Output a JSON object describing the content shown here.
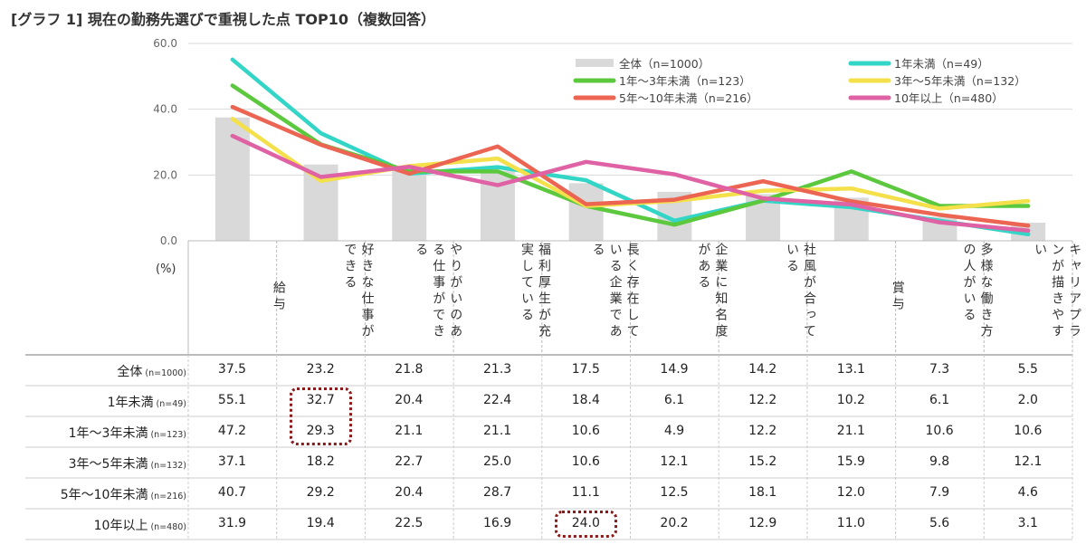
{
  "title": "[グラフ 1] 現在の勤務先選びで重視した点 TOP10（複数回答）",
  "chart_data": {
    "type": "bar+line",
    "title": "[グラフ 1] 現在の勤務先選びで重視した点 TOP10（複数回答）",
    "ylabel": "(%)",
    "ylim": [
      0,
      60
    ],
    "yticks": [
      "0.0",
      "20.0",
      "40.0",
      "60.0"
    ],
    "grid": true,
    "legend_position": "top-right",
    "categories": [
      "給与",
      "好きな仕事ができる",
      "やりがいのある仕事ができる",
      "福利厚生が充実している",
      "長く存在している企業である",
      "企業に知名度がある",
      "社風が合っている",
      "賞与",
      "多様な働き方の人がいる",
      "キャリアプランが描きやすい"
    ],
    "series": [
      {
        "name": "全体",
        "legend": "全体（n=1000）",
        "label": "全体",
        "n": "(n=1000)",
        "kind": "bar",
        "color": "#d9d9d9",
        "values": [
          "37.5",
          "23.2",
          "21.8",
          "21.3",
          "17.5",
          "14.9",
          "14.2",
          "13.1",
          "7.3",
          "5.5"
        ]
      },
      {
        "name": "1年未満",
        "legend": "1年未満（n=49）",
        "label": "1年未満",
        "n": "(n=49)",
        "kind": "line",
        "color": "#33d6c6",
        "values": [
          "55.1",
          "32.7",
          "20.4",
          "22.4",
          "18.4",
          "6.1",
          "12.2",
          "10.2",
          "6.1",
          "2.0"
        ]
      },
      {
        "name": "1年～3年未満",
        "legend": "1年～3年未満（n=123）",
        "label": "1年～3年未満",
        "n": "(n=123)",
        "kind": "line",
        "color": "#5cc83e",
        "values": [
          "47.2",
          "29.3",
          "21.1",
          "21.1",
          "10.6",
          "4.9",
          "12.2",
          "21.1",
          "10.6",
          "10.6"
        ]
      },
      {
        "name": "3年～5年未満",
        "legend": "3年～5年未満（n=132）",
        "label": "3年～5年未満",
        "n": "(n=132)",
        "kind": "line",
        "color": "#f4e04a",
        "values": [
          "37.1",
          "18.2",
          "22.7",
          "25.0",
          "10.6",
          "12.1",
          "15.2",
          "15.9",
          "9.8",
          "12.1"
        ]
      },
      {
        "name": "5年～10年未満",
        "legend": "5年～10年未満（n=216）",
        "label": "5年～10年未満",
        "n": "(n=216)",
        "kind": "line",
        "color": "#ec6452",
        "values": [
          "40.7",
          "29.2",
          "20.4",
          "28.7",
          "11.1",
          "12.5",
          "18.1",
          "12.0",
          "7.9",
          "4.6"
        ]
      },
      {
        "name": "10年以上",
        "legend": "10年以上（n=480）",
        "label": "10年以上",
        "n": "(n=480)",
        "kind": "line",
        "color": "#df62a4",
        "values": [
          "31.9",
          "19.4",
          "22.5",
          "16.9",
          "24.0",
          "20.2",
          "12.9",
          "11.0",
          "5.6",
          "3.1"
        ]
      }
    ],
    "highlights": [
      {
        "series": "1年未満",
        "category": "好きな仕事ができる"
      },
      {
        "series": "1年～3年未満",
        "category": "好きな仕事ができる"
      },
      {
        "series": "10年以上",
        "category": "長く存在している企業である"
      }
    ],
    "highlight_color": "#8b1a1a"
  }
}
